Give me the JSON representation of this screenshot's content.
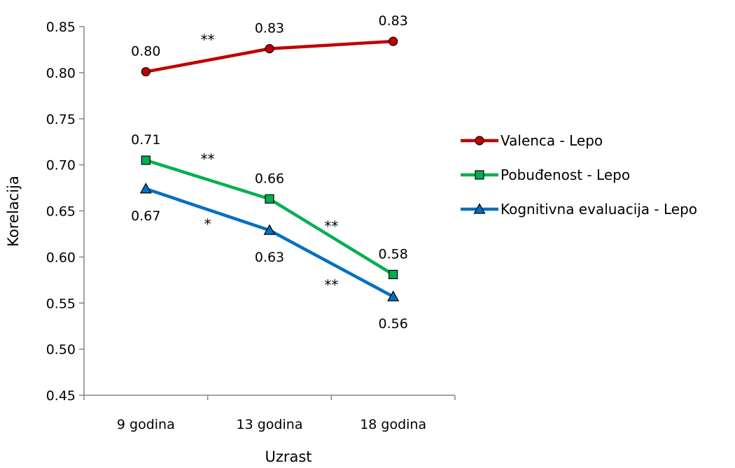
{
  "chart_data": {
    "type": "line",
    "title": "",
    "xlabel": "Uzrast",
    "ylabel": "Korelacija",
    "categories": [
      "9 godina",
      "13 godina",
      "18 godina"
    ],
    "ylim": [
      0.45,
      0.85
    ],
    "yticks": [
      "0.45",
      "0.50",
      "0.55",
      "0.60",
      "0.65",
      "0.70",
      "0.75",
      "0.80",
      "0.85"
    ],
    "grid": false,
    "legend_position": "right",
    "series": [
      {
        "name": "Valenca - Lepo",
        "values": [
          0.801,
          0.826,
          0.834
        ],
        "labels": [
          "0.80",
          "0.83",
          "0.83"
        ],
        "color": "#c00000",
        "marker": "circle",
        "marker_fill": "#c00000"
      },
      {
        "name": "Pobuđenost - Lepo",
        "values": [
          0.705,
          0.663,
          0.581
        ],
        "labels": [
          "0.71",
          "0.66",
          "0.58"
        ],
        "color": "#00b050",
        "marker": "square",
        "marker_fill": "#00b050"
      },
      {
        "name": "Kognitivna evaluacija - Lepo",
        "values": [
          0.674,
          0.629,
          0.557
        ],
        "labels": [
          "0.67",
          "0.63",
          "0.56"
        ],
        "color": "#0070c0",
        "marker": "triangle",
        "marker_fill": "#0070c0"
      }
    ],
    "significance": [
      {
        "text": "**",
        "series": 0,
        "between": [
          0,
          1
        ]
      },
      {
        "text": "**",
        "series": 1,
        "between": [
          0,
          1
        ]
      },
      {
        "text": "*",
        "series": 2,
        "between": [
          0,
          1
        ]
      },
      {
        "text": "**",
        "series": 1,
        "between": [
          1,
          2
        ]
      },
      {
        "text": "**",
        "series": 2,
        "between": [
          1,
          2
        ]
      }
    ]
  }
}
